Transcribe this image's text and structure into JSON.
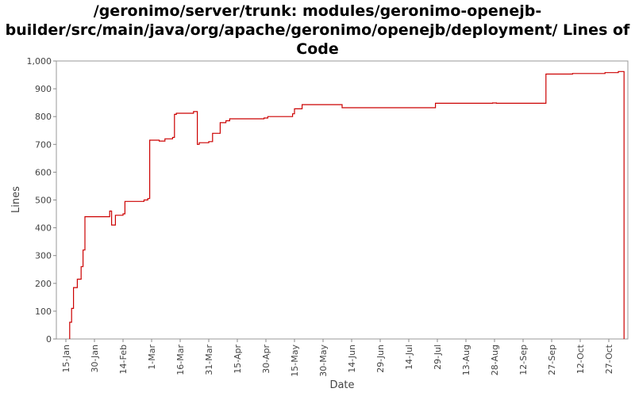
{
  "chart_data": {
    "type": "line",
    "title_lines": [
      "/geronimo/server/trunk: modules/geronimo-openejb-",
      "builder/src/main/java/org/apache/geronimo/openejb/deployment/ Lines of",
      "Code"
    ],
    "xlabel": "Date",
    "ylabel": "Lines",
    "ylim": [
      0,
      1000
    ],
    "y_ticks": [
      "0",
      "100",
      "200",
      "300",
      "400",
      "500",
      "600",
      "700",
      "800",
      "900",
      "1,000"
    ],
    "x_ticks": [
      "15-Jan",
      "30-Jan",
      "14-Feb",
      "1-Mar",
      "16-Mar",
      "31-Mar",
      "15-Apr",
      "30-Apr",
      "15-May",
      "30-May",
      "14-Jun",
      "29-Jun",
      "14-Jul",
      "29-Jul",
      "13-Aug",
      "28-Aug",
      "12-Sep",
      "27-Sep",
      "12-Oct",
      "27-Oct"
    ],
    "x_tick_dates": [
      "2007-01-15",
      "2007-01-30",
      "2007-02-14",
      "2007-03-01",
      "2007-03-16",
      "2007-03-31",
      "2007-04-15",
      "2007-04-30",
      "2007-05-15",
      "2007-05-30",
      "2007-06-14",
      "2007-06-29",
      "2007-07-14",
      "2007-07-29",
      "2007-08-13",
      "2007-08-28",
      "2007-09-12",
      "2007-09-27",
      "2007-10-12",
      "2007-10-27"
    ],
    "xlim": [
      "2007-01-10",
      "2007-11-06"
    ],
    "grid": false,
    "line_color": "#cc0000",
    "series": [
      {
        "step": true,
        "points": [
          [
            "2007-01-17",
            0
          ],
          [
            "2007-01-17",
            60
          ],
          [
            "2007-01-18",
            110
          ],
          [
            "2007-01-19",
            185
          ],
          [
            "2007-01-21",
            215
          ],
          [
            "2007-01-23",
            260
          ],
          [
            "2007-01-24",
            300
          ],
          [
            "2007-01-24",
            320
          ],
          [
            "2007-01-25",
            440
          ],
          [
            "2007-02-06",
            440
          ],
          [
            "2007-02-07",
            460
          ],
          [
            "2007-02-08",
            410
          ],
          [
            "2007-02-10",
            445
          ],
          [
            "2007-02-14",
            450
          ],
          [
            "2007-02-15",
            495
          ],
          [
            "2007-02-25",
            500
          ],
          [
            "2007-02-27",
            505
          ],
          [
            "2007-02-28",
            715
          ],
          [
            "2007-03-05",
            712
          ],
          [
            "2007-03-08",
            720
          ],
          [
            "2007-03-12",
            725
          ],
          [
            "2007-03-13",
            808
          ],
          [
            "2007-03-14",
            812
          ],
          [
            "2007-03-23",
            818
          ],
          [
            "2007-03-25",
            700
          ],
          [
            "2007-03-26",
            706
          ],
          [
            "2007-03-31",
            710
          ],
          [
            "2007-04-02",
            740
          ],
          [
            "2007-04-06",
            778
          ],
          [
            "2007-04-09",
            785
          ],
          [
            "2007-04-11",
            792
          ],
          [
            "2007-04-29",
            795
          ],
          [
            "2007-05-01",
            800
          ],
          [
            "2007-05-14",
            810
          ],
          [
            "2007-05-15",
            828
          ],
          [
            "2007-05-19",
            843
          ],
          [
            "2007-06-09",
            832
          ],
          [
            "2007-07-28",
            848
          ],
          [
            "2007-08-27",
            849
          ],
          [
            "2007-08-29",
            848
          ],
          [
            "2007-09-24",
            953
          ],
          [
            "2007-10-08",
            955
          ],
          [
            "2007-10-25",
            958
          ],
          [
            "2007-11-01",
            962
          ],
          [
            "2007-11-04",
            962
          ],
          [
            "2007-11-04",
            0
          ]
        ]
      }
    ]
  }
}
